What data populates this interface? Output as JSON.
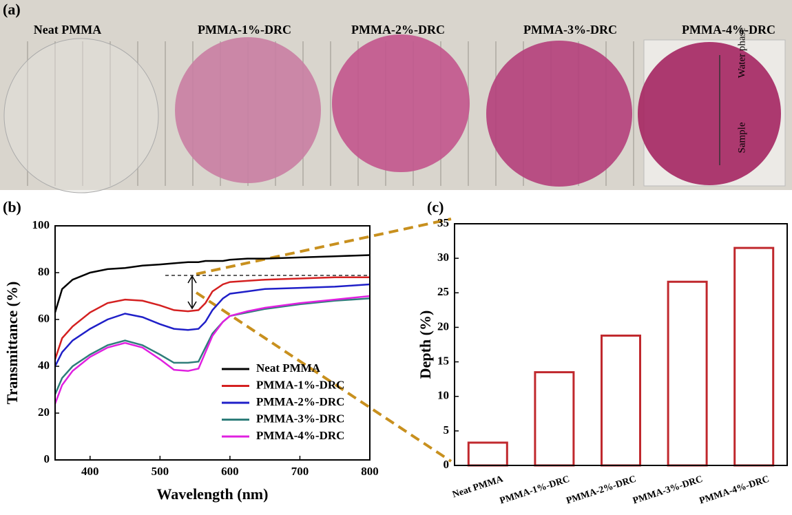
{
  "photo": {
    "label": "(a)",
    "samples": [
      "Neat PMMA",
      "PMMA-1%-DRC",
      "PMMA-2%-DRC",
      "PMMA-3%-DRC",
      "PMMA-4%-DRC"
    ],
    "colors": [
      "#e4e2dc",
      "#c97ea3",
      "#c2558d",
      "#b43f7b",
      "#a52662"
    ],
    "annotations": [
      "Water phase",
      "Sample"
    ]
  },
  "chart_data": [
    {
      "type": "line",
      "panel": "(b)",
      "x_label": "Wavelength (nm)",
      "y_label": "Transmittance (%)",
      "x": [
        350,
        360,
        375,
        400,
        425,
        450,
        475,
        500,
        520,
        540,
        555,
        565,
        575,
        590,
        600,
        625,
        650,
        700,
        750,
        800
      ],
      "series": [
        {
          "name": "Neat PMMA",
          "color": "#000000",
          "values": [
            63,
            73,
            77,
            80,
            81.5,
            82,
            83,
            83.5,
            84,
            84.5,
            84.5,
            85,
            85,
            85,
            85.5,
            86,
            86,
            86.5,
            87,
            87.5
          ]
        },
        {
          "name": "PMMA-1%-DRC",
          "color": "#d42020",
          "values": [
            43,
            52,
            57,
            63,
            67,
            68.5,
            68,
            66,
            64,
            63.5,
            64,
            67,
            72,
            75,
            76,
            76.5,
            77,
            77.5,
            78,
            78
          ]
        },
        {
          "name": "PMMA-2%-DRC",
          "color": "#1f1fc8",
          "values": [
            40,
            46,
            51,
            56,
            60,
            62.5,
            61,
            58,
            56,
            55.5,
            56,
            59,
            64,
            69,
            71,
            72,
            73,
            73.5,
            74,
            75
          ]
        },
        {
          "name": "PMMA-3%-DRC",
          "color": "#2e7d7a",
          "values": [
            28,
            35,
            40,
            45,
            49,
            51,
            49,
            45,
            41.5,
            41.5,
            42,
            48,
            54,
            59,
            61.5,
            63,
            64.5,
            66.5,
            68,
            69
          ]
        },
        {
          "name": "PMMA-4%-DRC",
          "color": "#e020e0",
          "values": [
            24,
            32,
            38,
            44,
            48,
            50,
            48,
            43,
            38.5,
            38,
            39,
            46,
            53,
            59,
            61.5,
            63.5,
            65,
            67,
            68.5,
            70
          ]
        }
      ],
      "xlim": [
        350,
        800
      ],
      "xticks": [
        400,
        500,
        600,
        700,
        800
      ],
      "ylim": [
        0,
        100
      ],
      "yticks": [
        0,
        20,
        40,
        60,
        80,
        100
      ],
      "legend": "lower right"
    },
    {
      "type": "bar",
      "panel": "(c)",
      "y_label": "Depth (%)",
      "categories": [
        "Neat PMMA",
        "PMMA-1%-DRC",
        "PMMA-2%-DRC",
        "PMMA-3%-DRC",
        "PMMA-4%-DRC"
      ],
      "values": [
        3.3,
        13.5,
        18.8,
        26.6,
        31.5
      ],
      "color": "#c0282d",
      "ylim": [
        0,
        35
      ],
      "yticks": [
        0,
        5,
        10,
        15,
        20,
        25,
        30,
        35
      ]
    }
  ]
}
